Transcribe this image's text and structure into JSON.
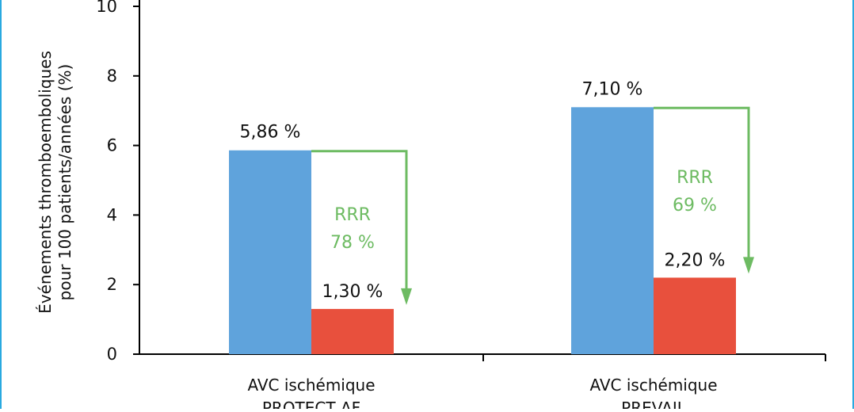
{
  "chart_data": {
    "type": "bar",
    "categories": [
      [
        "AVC ischémique",
        "PROTECT AF"
      ],
      [
        "AVC ischémique",
        "PREVAIL"
      ]
    ],
    "series": [
      {
        "values": [
          5.86,
          7.1
        ],
        "labels": [
          "5,86 %",
          "7,10 %"
        ],
        "color": "#5fa3dc"
      },
      {
        "values": [
          1.3,
          2.2
        ],
        "labels": [
          "1,30 %",
          "2,20 %"
        ],
        "color": "#e8503d"
      }
    ],
    "annotations": [
      {
        "text": [
          "RRR",
          "78 %"
        ],
        "color": "#6dbb62"
      },
      {
        "text": [
          "RRR",
          "69 %"
        ],
        "color": "#6dbb62"
      }
    ],
    "ylabel": [
      "Événements thromboemboliques",
      "pour 100 patients/années (%)"
    ],
    "ylim": [
      0,
      10
    ],
    "yticks": [
      0,
      2,
      4,
      6,
      8,
      10
    ],
    "grid": false
  }
}
